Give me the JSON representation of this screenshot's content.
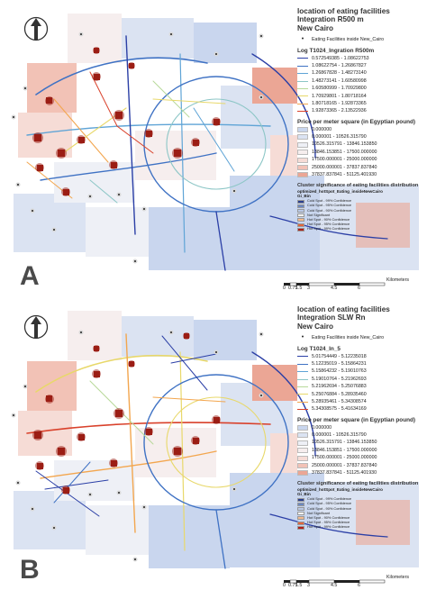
{
  "panels": [
    {
      "letter": "A",
      "title_line1": "location of eating facilities",
      "title_line2": "Integration R500 m",
      "title_line3": "New Cairo",
      "points_legend": "Eating Facilities inside New_Cairo",
      "network_title": "Log T1024_Ingration R500m",
      "network_classes": [
        {
          "label": "0.572549385 - 1.08622753",
          "color": "#2b3fa6"
        },
        {
          "label": "1.08622754 - 1.26867827",
          "color": "#3f72c4"
        },
        {
          "label": "1.26867828 - 1.48273140",
          "color": "#5fa4d6"
        },
        {
          "label": "1.48273141 - 1.60580998",
          "color": "#8cc6c6"
        },
        {
          "label": "1.60580999 - 1.70929800",
          "color": "#b8d99a"
        },
        {
          "label": "1.70929801 - 1.80718164",
          "color": "#e8d86a"
        },
        {
          "label": "1.80718165 - 1.92873365",
          "color": "#f3a64e"
        },
        {
          "label": "1.92873365 - 2.13522936",
          "color": "#d9412b"
        }
      ]
    },
    {
      "letter": "B",
      "title_line1": "location of eating facilities",
      "title_line2": "Integration SLW Rn",
      "title_line3": "New Cairo",
      "points_legend": "Eating Facilities inside New_Cairo",
      "network_title": "Log T1024_In_5",
      "network_classes": [
        {
          "label": "5.01754449 - 5.12235018",
          "color": "#2b3fa6"
        },
        {
          "label": "5.12235019 - 5.15864231",
          "color": "#3f72c4"
        },
        {
          "label": "5.15864232 - 5.19010763",
          "color": "#5fa4d6"
        },
        {
          "label": "5.19010764 - 5.21962693",
          "color": "#8cc6c6"
        },
        {
          "label": "5.21962694 - 5.25076883",
          "color": "#b8d99a"
        },
        {
          "label": "5.25076884 - 5.28935460",
          "color": "#e8d86a"
        },
        {
          "label": "5.28935461 - 5.34308574",
          "color": "#f3a64e"
        },
        {
          "label": "5.34308575 - 5.41634169",
          "color": "#d9412b"
        }
      ]
    }
  ],
  "price": {
    "title": "Price per meter square (in Egyptian pound)",
    "classes": [
      {
        "label": "0.000000",
        "color": "#c9d6ee"
      },
      {
        "label": "0.000001 - 10526.315790",
        "color": "#dbe3f2"
      },
      {
        "label": "10526.315791 - 13846.153850",
        "color": "#eef0f6"
      },
      {
        "label": "13846.153851 - 17500.000000",
        "color": "#f6eeee"
      },
      {
        "label": "17500.000001 - 25000.000000",
        "color": "#f6dcd6"
      },
      {
        "label": "25000.000001 - 37837.837840",
        "color": "#f2c2b6"
      },
      {
        "label": "37837.837841 - 51125.401930",
        "color": "#eba695"
      }
    ]
  },
  "cluster": {
    "title": "Cluster significance of eating facilities distribution",
    "layer": "optimized_hotSpot_Eating_insideNewCairo",
    "field": "Gi_Bin",
    "classes": [
      {
        "label": "Cold Spot - 99% Confidence",
        "color": "#2a3f8f"
      },
      {
        "label": "Cold Spot - 95% Confidence",
        "color": "#6b88c2"
      },
      {
        "label": "Cold Spot - 90% Confidence",
        "color": "#b9c8e6"
      },
      {
        "label": "Not Significant",
        "color": "#f2f2f2"
      },
      {
        "label": "Hot Spot - 90% Confidence",
        "color": "#f3b98f"
      },
      {
        "label": "Hot Spot - 95% Confidence",
        "color": "#e0653c"
      },
      {
        "label": "Hot Spot - 99% Confidence",
        "color": "#b01e16"
      }
    ]
  },
  "scale": {
    "ticks": [
      "0",
      "0.75",
      "1.5",
      "3",
      "4.5",
      "6"
    ],
    "unit": "Kilometers"
  },
  "colors": {
    "hotspot": "#9b1d14",
    "road_main": "#2b3fa6",
    "north_arrow": "#333333"
  },
  "icons": {
    "north": "north-arrow-icon"
  }
}
